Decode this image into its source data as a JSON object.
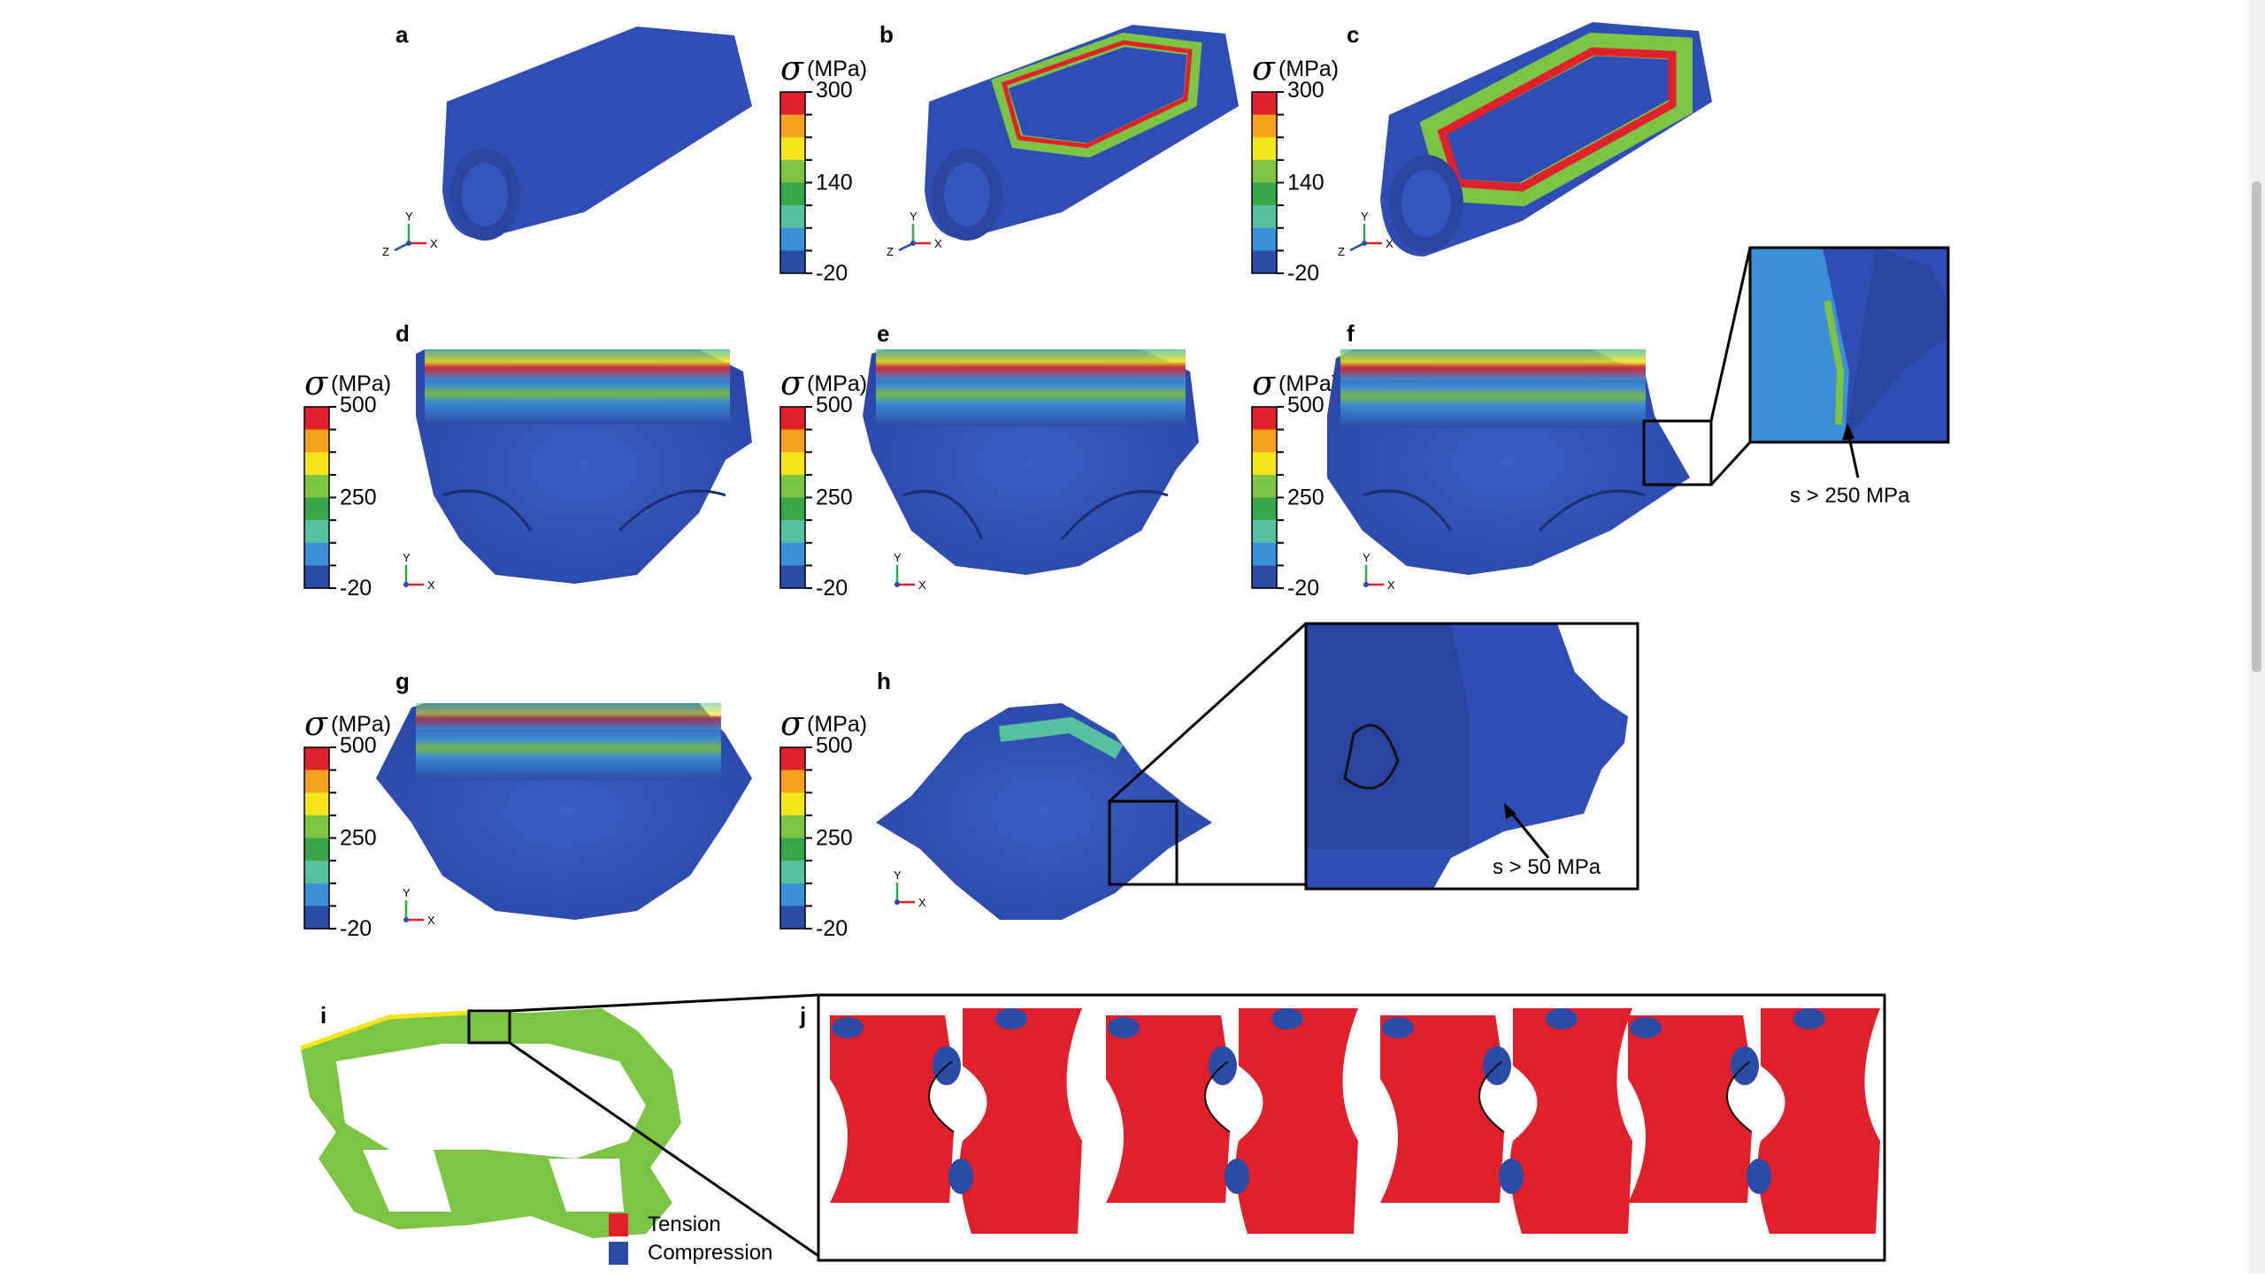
{
  "panels": {
    "a": "a",
    "b": "b",
    "c": "c",
    "d": "d",
    "e": "e",
    "f": "f",
    "g": "g",
    "h": "h",
    "i": "i",
    "j": "j"
  },
  "colorbar_top": {
    "symbol": "σ",
    "unit": "(MPa)",
    "ticks": [
      "300",
      "140",
      "-20"
    ]
  },
  "colorbar_mid": {
    "symbol": "σ",
    "unit": "(MPa)",
    "ticks": [
      "500",
      "250",
      "-20"
    ]
  },
  "colorbar_colors": [
    "#e0202a",
    "#f7a21b",
    "#f3e51a",
    "#7cc443",
    "#3aa64a",
    "#56c0a0",
    "#3b8fd6",
    "#2a4ba6"
  ],
  "axes": {
    "y": "Y",
    "x": "X",
    "z": "Z"
  },
  "annotations": {
    "f_inset": "s > 250 MPa",
    "h_inset": "s > 50 MPa"
  },
  "legend_ij": {
    "tension": "Tension",
    "compression": "Compression",
    "tension_color": "#e0202a",
    "compression_color": "#2a4ba6"
  }
}
